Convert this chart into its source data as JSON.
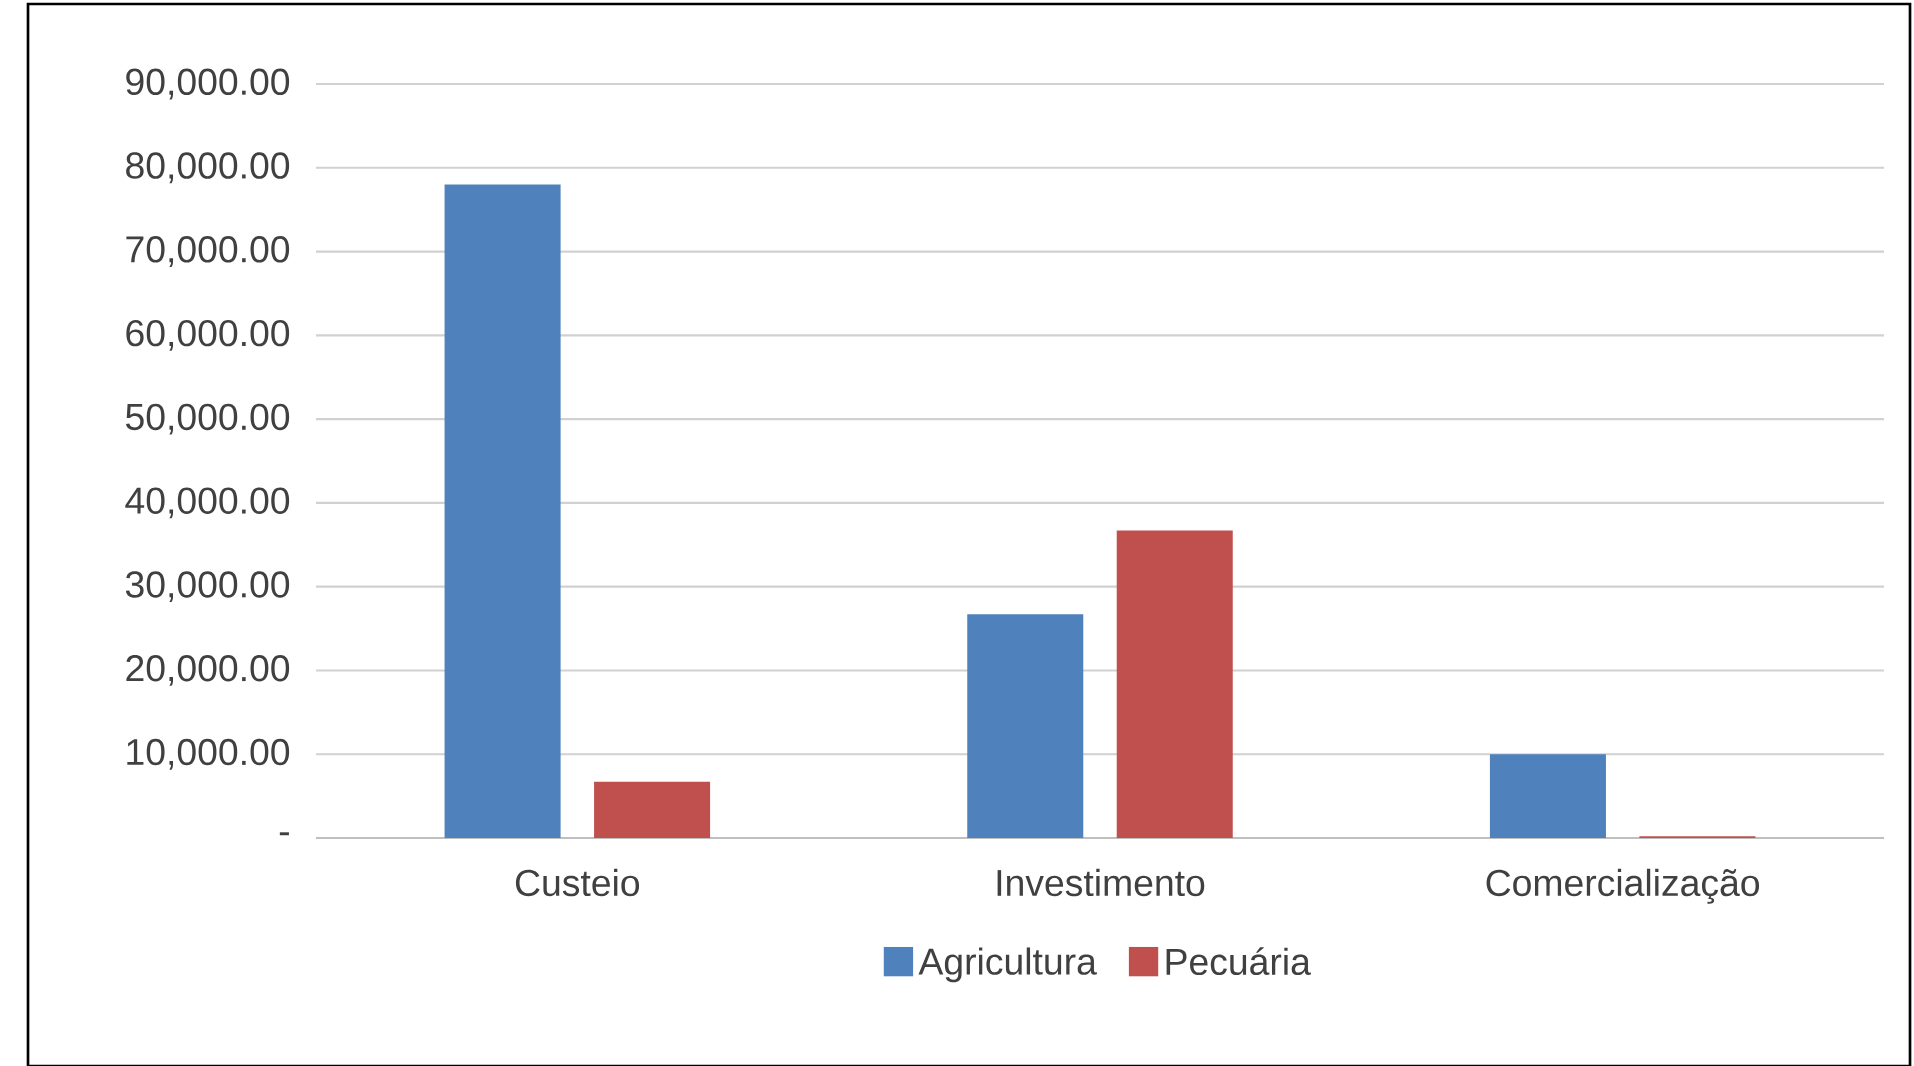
{
  "chart_data": {
    "type": "bar",
    "categories": [
      "Custeio",
      "Investimento",
      "Comercialização"
    ],
    "series": [
      {
        "name": "Agricultura",
        "color": "#4f81bd",
        "values": [
          78000,
          26700,
          10000
        ]
      },
      {
        "name": "Pecuária",
        "color": "#c0504d",
        "values": [
          6700,
          36700,
          200
        ]
      }
    ],
    "ylim": [
      0,
      90000
    ],
    "yticks": [
      {
        "value": 0,
        "label": "-"
      },
      {
        "value": 10000,
        "label": "10,000.00"
      },
      {
        "value": 20000,
        "label": "20,000.00"
      },
      {
        "value": 30000,
        "label": "30,000.00"
      },
      {
        "value": 40000,
        "label": "40,000.00"
      },
      {
        "value": 50000,
        "label": "50,000.00"
      },
      {
        "value": 60000,
        "label": "60,000.00"
      },
      {
        "value": 70000,
        "label": "70,000.00"
      },
      {
        "value": 80000,
        "label": "80,000.00"
      },
      {
        "value": 90000,
        "label": "90,000.00"
      }
    ],
    "grid": "y",
    "legend": "bottom"
  }
}
